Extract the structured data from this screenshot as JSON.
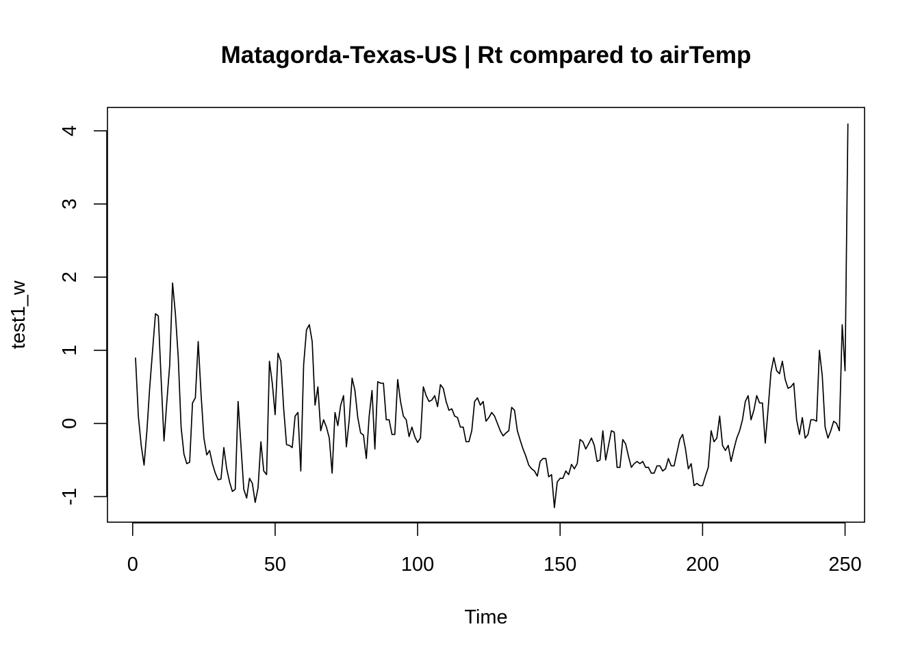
{
  "chart_data": {
    "type": "line",
    "title": "Matagorda-Texas-US | Rt compared to airTemp",
    "xlabel": "Time",
    "ylabel": "test1_w",
    "xlim": [
      -8.84,
      256.84
    ],
    "ylim": [
      -1.35,
      4.32
    ],
    "x_ticks": [
      0,
      50,
      100,
      150,
      200,
      250
    ],
    "y_ticks": [
      -1,
      0,
      1,
      2,
      3,
      4
    ],
    "grid": false,
    "line_color": "#000000",
    "series": [
      {
        "x_start": 1,
        "values": [
          0.9,
          0.1,
          -0.3,
          -0.57,
          -0.1,
          0.5,
          1.0,
          1.5,
          1.47,
          0.6,
          -0.24,
          0.3,
          0.8,
          1.92,
          1.5,
          0.9,
          -0.05,
          -0.42,
          -0.55,
          -0.53,
          0.28,
          0.35,
          1.12,
          0.4,
          -0.2,
          -0.43,
          -0.37,
          -0.55,
          -0.68,
          -0.77,
          -0.76,
          -0.33,
          -0.62,
          -0.8,
          -0.93,
          -0.9,
          0.3,
          -0.3,
          -0.9,
          -1.02,
          -0.75,
          -0.82,
          -1.08,
          -0.88,
          -0.25,
          -0.65,
          -0.7,
          0.85,
          0.55,
          0.12,
          0.96,
          0.85,
          0.2,
          -0.29,
          -0.3,
          -0.33,
          0.1,
          0.15,
          -0.65,
          0.8,
          1.28,
          1.35,
          1.12,
          0.25,
          0.5,
          -0.1,
          0.05,
          -0.05,
          -0.2,
          -0.68,
          0.15,
          -0.03,
          0.25,
          0.38,
          -0.32,
          0.05,
          0.62,
          0.45,
          0.08,
          -0.13,
          -0.16,
          -0.48,
          0.1,
          0.45,
          -0.35,
          0.57,
          0.55,
          0.55,
          0.05,
          0.05,
          -0.15,
          -0.15,
          0.6,
          0.3,
          0.1,
          0.05,
          -0.18,
          -0.05,
          -0.18,
          -0.26,
          -0.2,
          0.5,
          0.38,
          0.3,
          0.32,
          0.38,
          0.23,
          0.53,
          0.48,
          0.3,
          0.18,
          0.2,
          0.1,
          0.08,
          -0.05,
          -0.05,
          -0.25,
          -0.25,
          -0.1,
          0.3,
          0.35,
          0.25,
          0.3,
          0.03,
          0.08,
          0.15,
          0.1,
          0.0,
          -0.1,
          -0.17,
          -0.13,
          -0.1,
          0.22,
          0.18,
          -0.1,
          -0.23,
          -0.35,
          -0.45,
          -0.57,
          -0.62,
          -0.65,
          -0.72,
          -0.52,
          -0.48,
          -0.48,
          -0.73,
          -0.7,
          -1.15,
          -0.8,
          -0.75,
          -0.75,
          -0.65,
          -0.7,
          -0.56,
          -0.62,
          -0.55,
          -0.22,
          -0.25,
          -0.35,
          -0.28,
          -0.2,
          -0.3,
          -0.52,
          -0.5,
          -0.1,
          -0.5,
          -0.3,
          -0.1,
          -0.12,
          -0.6,
          -0.6,
          -0.22,
          -0.28,
          -0.45,
          -0.6,
          -0.55,
          -0.52,
          -0.55,
          -0.52,
          -0.6,
          -0.6,
          -0.68,
          -0.68,
          -0.58,
          -0.58,
          -0.65,
          -0.62,
          -0.48,
          -0.58,
          -0.58,
          -0.4,
          -0.22,
          -0.15,
          -0.35,
          -0.62,
          -0.55,
          -0.85,
          -0.82,
          -0.85,
          -0.85,
          -0.72,
          -0.6,
          -0.1,
          -0.25,
          -0.2,
          0.1,
          -0.3,
          -0.37,
          -0.3,
          -0.52,
          -0.35,
          -0.2,
          -0.1,
          0.05,
          0.3,
          0.38,
          0.05,
          0.18,
          0.38,
          0.28,
          0.28,
          -0.27,
          0.2,
          0.7,
          0.9,
          0.72,
          0.68,
          0.85,
          0.6,
          0.48,
          0.5,
          0.55,
          0.05,
          -0.15,
          0.08,
          -0.2,
          -0.15,
          0.05,
          0.05,
          0.03,
          1.0,
          0.65,
          -0.05,
          -0.2,
          -0.1,
          0.03,
          0.0,
          -0.1,
          1.35,
          0.72,
          4.1
        ]
      }
    ]
  }
}
